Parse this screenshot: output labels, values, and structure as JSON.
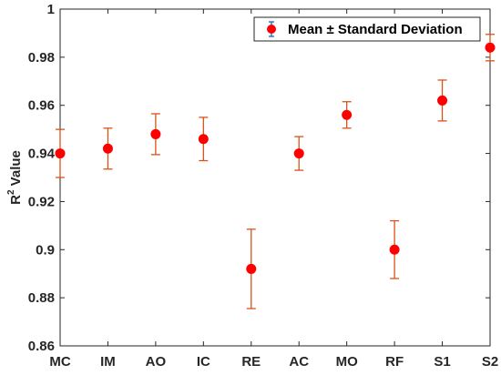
{
  "chart_data": {
    "type": "scatter",
    "title": "",
    "xlabel": "",
    "ylabel": "R",
    "ylabel_superscript": "2",
    "ylabel_suffix": " Value",
    "categories": [
      "MC",
      "IM",
      "AO",
      "IC",
      "RE",
      "AC",
      "MO",
      "RF",
      "S1",
      "S2"
    ],
    "series": [
      {
        "name": "Mean ± Standard Deviation",
        "values": [
          0.94,
          0.942,
          0.948,
          0.946,
          0.892,
          0.94,
          0.956,
          0.9,
          0.962,
          0.984
        ],
        "error": [
          0.01,
          0.0085,
          0.0085,
          0.009,
          0.0165,
          0.007,
          0.0055,
          0.012,
          0.0085,
          0.0055
        ]
      }
    ],
    "ylim": [
      0.86,
      1.0
    ],
    "yticks": [
      0.86,
      0.88,
      0.9,
      0.92,
      0.94,
      0.96,
      0.98,
      1
    ],
    "ytick_labels": [
      "0.86",
      "0.88",
      "0.9",
      "0.92",
      "0.94",
      "0.96",
      "0.98",
      "1"
    ],
    "grid": false,
    "legend_position": "top-right",
    "colors": {
      "marker": "#ff0000",
      "errorbar": "#d95319",
      "legend_errorbar": "#0072bd",
      "axis": "#262626"
    }
  }
}
